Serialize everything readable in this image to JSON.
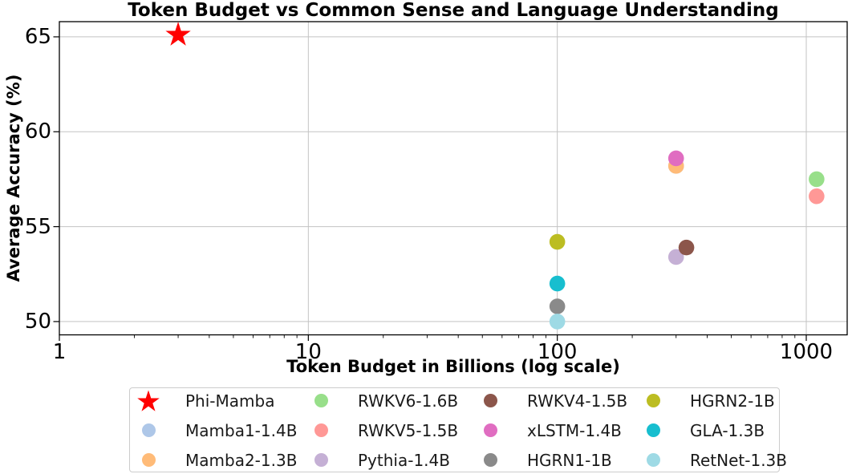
{
  "chart_data": {
    "type": "scatter",
    "title": "Token Budget vs Common Sense and Language Understanding",
    "xlabel": "Token Budget in Billions (log scale)",
    "ylabel": "Average Accuracy (%)",
    "x_scale": "log",
    "y_scale": "linear",
    "xlim": [
      1,
      1460
    ],
    "ylim": [
      49.3,
      65.8
    ],
    "x_ticks": [
      1,
      10,
      100,
      1000
    ],
    "x_tick_labels": [
      "1",
      "10",
      "100",
      "1000"
    ],
    "y_ticks": [
      50,
      55,
      60,
      65
    ],
    "y_tick_labels": [
      "50",
      "55",
      "60",
      "65"
    ],
    "grid": true,
    "legend_position": "below-chart",
    "grid_color": "#c3c3c3",
    "series": [
      {
        "name": "Phi-Mamba",
        "marker": "star",
        "color": "#ff0000",
        "x": 3,
        "y": 65.1
      },
      {
        "name": "Mamba1-1.4B",
        "marker": "circle",
        "color": "#aec7e8",
        "x": 300,
        "y": 58.2
      },
      {
        "name": "Mamba2-1.3B",
        "marker": "circle",
        "color": "#ffbb78",
        "x": 300,
        "y": 58.2
      },
      {
        "name": "RWKV6-1.6B",
        "marker": "circle",
        "color": "#98df8a",
        "x": 1100,
        "y": 57.5
      },
      {
        "name": "RWKV5-1.5B",
        "marker": "circle",
        "color": "#ff9896",
        "x": 1100,
        "y": 56.6
      },
      {
        "name": "Pythia-1.4B",
        "marker": "circle",
        "color": "#c5b0d5",
        "x": 300,
        "y": 53.4
      },
      {
        "name": "RWKV4-1.5B",
        "marker": "circle",
        "color": "#8c564b",
        "x": 330,
        "y": 53.9
      },
      {
        "name": "xLSTM-1.4B",
        "marker": "circle",
        "color": "#e06dc1",
        "x": 300,
        "y": 58.6
      },
      {
        "name": "HGRN1-1B",
        "marker": "circle",
        "color": "#8a8a8a",
        "x": 100,
        "y": 50.8
      },
      {
        "name": "HGRN2-1B",
        "marker": "circle",
        "color": "#bcbd22",
        "x": 100,
        "y": 54.2
      },
      {
        "name": "GLA-1.3B",
        "marker": "circle",
        "color": "#17becf",
        "x": 100,
        "y": 52.0
      },
      {
        "name": "RetNet-1.3B",
        "marker": "circle",
        "color": "#9edae5",
        "x": 100,
        "y": 50.0
      }
    ],
    "legend_columns": [
      [
        "Phi-Mamba",
        "Mamba1-1.4B",
        "Mamba2-1.3B"
      ],
      [
        "RWKV6-1.6B",
        "RWKV5-1.5B",
        "Pythia-1.4B"
      ],
      [
        "RWKV4-1.5B",
        "xLSTM-1.4B",
        "HGRN1-1B"
      ],
      [
        "HGRN2-1B",
        "GLA-1.3B",
        "RetNet-1.3B"
      ]
    ]
  }
}
